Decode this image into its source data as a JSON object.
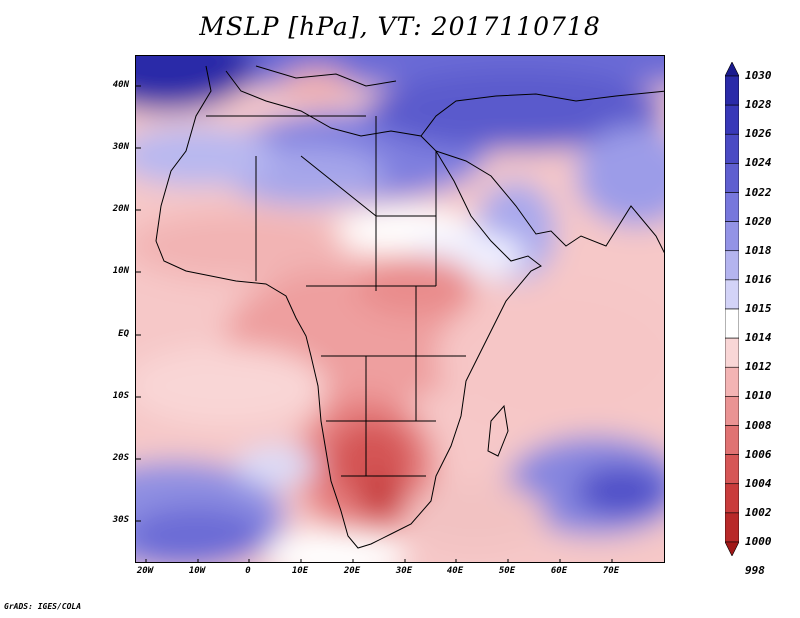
{
  "title": "MSLP [hPa], VT: 2017110718",
  "footer": "GrADS: IGES/COLA",
  "lat_labels": [
    "40N",
    "30N",
    "20N",
    "10N",
    "EQ",
    "10S",
    "20S",
    "30S"
  ],
  "lon_labels": [
    "20W",
    "10W",
    "0",
    "10E",
    "20E",
    "30E",
    "40E",
    "50E",
    "60E",
    "70E"
  ],
  "colorbar": {
    "levels": [
      "1030",
      "1028",
      "1026",
      "1024",
      "1022",
      "1020",
      "1018",
      "1016",
      "1015",
      "1014",
      "1012",
      "1010",
      "1008",
      "1006",
      "1004",
      "1002",
      "1000",
      "998"
    ],
    "colors": [
      "#1a1a8e",
      "#2a2aa8",
      "#3838b8",
      "#4a4ac4",
      "#5f5fd0",
      "#7777dc",
      "#9393e6",
      "#b4b4ef",
      "#d3d3f7",
      "#ffffff",
      "#f9d6d6",
      "#f3b4b4",
      "#ea9393",
      "#e07272",
      "#d65656",
      "#c93c3c",
      "#b82929",
      "#a01818"
    ]
  },
  "fields": [
    {
      "name": "mediterranean-high",
      "value": 1024
    },
    {
      "name": "arabian-high",
      "value": 1020
    },
    {
      "name": "south-atlantic-high",
      "value": 1022
    },
    {
      "name": "indian-ocean-high",
      "value": 1024
    },
    {
      "name": "southern-africa-low",
      "value": 1004
    }
  ]
}
